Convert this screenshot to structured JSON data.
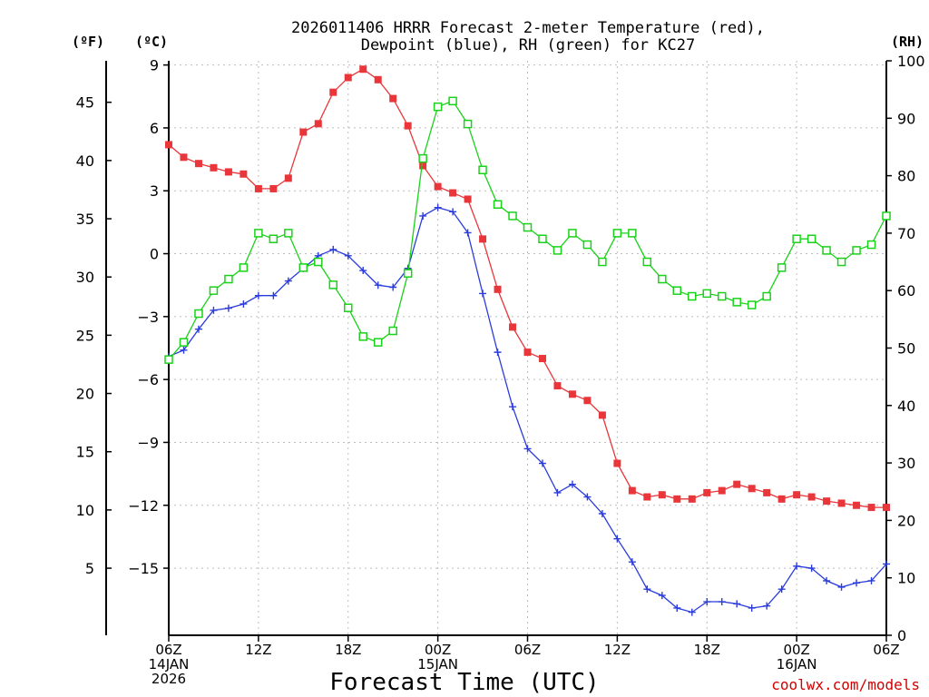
{
  "chart_data": {
    "type": "line",
    "title": [
      "2026011406 HRRR Forecast 2-meter Temperature (red),",
      "Dewpoint (blue), RH (green) for KC27"
    ],
    "xlabel": "Forecast Time (UTC)",
    "credit": "coolwx.com/models",
    "units": {
      "fahrenheit": "(ºF)",
      "celsius": "(ºC)",
      "rh": "(RH)"
    },
    "x_hours": [
      0,
      1,
      2,
      3,
      4,
      5,
      6,
      7,
      8,
      9,
      10,
      11,
      12,
      13,
      14,
      15,
      16,
      17,
      18,
      19,
      20,
      21,
      22,
      23,
      24,
      25,
      26,
      27,
      28,
      29,
      30,
      31,
      32,
      33,
      34,
      35,
      36,
      37,
      38,
      39,
      40,
      41,
      42,
      43,
      44,
      45,
      46,
      47,
      48
    ],
    "x_range": [
      0,
      48
    ],
    "x_ticks": [
      {
        "hour": 0,
        "lines": [
          "06Z",
          "14JAN",
          "2026"
        ]
      },
      {
        "hour": 6,
        "lines": [
          "12Z"
        ]
      },
      {
        "hour": 12,
        "lines": [
          "18Z"
        ]
      },
      {
        "hour": 18,
        "lines": [
          "00Z",
          "15JAN"
        ]
      },
      {
        "hour": 24,
        "lines": [
          "06Z"
        ]
      },
      {
        "hour": 30,
        "lines": [
          "12Z"
        ]
      },
      {
        "hour": 36,
        "lines": [
          "18Z"
        ]
      },
      {
        "hour": 42,
        "lines": [
          "00Z",
          "16JAN"
        ]
      },
      {
        "hour": 48,
        "lines": [
          "06Z"
        ]
      }
    ],
    "y_celsius": {
      "range": [
        -18.2,
        9.2
      ],
      "ticks": [
        9,
        6,
        3,
        0,
        -3,
        -6,
        -9,
        -12,
        -15
      ],
      "labels": [
        "9",
        "6",
        "3",
        "0",
        "−3",
        "−6",
        "−9",
        "−12",
        "−15"
      ]
    },
    "y_fahrenheit": {
      "ticks": [
        45,
        40,
        35,
        30,
        25,
        20,
        15,
        10,
        5
      ],
      "labels": [
        "45",
        "40",
        "35",
        "30",
        "25",
        "20",
        "15",
        "10",
        "5"
      ]
    },
    "y_rh": {
      "range": [
        0,
        100
      ],
      "ticks": [
        100,
        90,
        80,
        70,
        60,
        50,
        40,
        30,
        20,
        10,
        0
      ],
      "labels": [
        "100",
        "90",
        "80",
        "70",
        "60",
        "50",
        "40",
        "30",
        "20",
        "10",
        "0"
      ]
    },
    "grid": true,
    "series": [
      {
        "name": "Temperature",
        "axis": "celsius",
        "color": "#e8363a",
        "marker": "filled-square",
        "values": [
          5.2,
          4.6,
          4.3,
          4.1,
          3.9,
          3.8,
          3.1,
          3.1,
          3.6,
          5.8,
          6.2,
          7.7,
          8.4,
          8.8,
          8.3,
          7.4,
          6.1,
          4.2,
          3.2,
          2.9,
          2.6,
          0.7,
          -1.7,
          -3.5,
          -4.7,
          -5.0,
          -6.3,
          -6.7,
          -7.0,
          -7.7,
          -10.0,
          -11.3,
          -11.6,
          -11.5,
          -11.7,
          -11.7,
          -11.4,
          -11.3,
          -11.0,
          -11.2,
          -11.4,
          -11.7,
          -11.5,
          -11.6,
          -11.8,
          -11.9,
          -12.0,
          -12.1,
          -12.1
        ]
      },
      {
        "name": "Dewpoint",
        "axis": "celsius",
        "color": "#2a3cdc",
        "marker": "plus",
        "values": [
          -4.9,
          -4.6,
          -3.6,
          -2.7,
          -2.6,
          -2.4,
          -2.0,
          -2.0,
          -1.3,
          -0.7,
          -0.1,
          0.2,
          -0.1,
          -0.8,
          -1.5,
          -1.6,
          -0.7,
          1.8,
          2.2,
          2.0,
          1.0,
          -1.9,
          -4.7,
          -7.3,
          -9.3,
          -10.0,
          -11.4,
          -11.0,
          -11.6,
          -12.4,
          -13.6,
          -14.7,
          -16.0,
          -16.3,
          -16.9,
          -17.1,
          -16.6,
          -16.6,
          -16.7,
          -16.9,
          -16.8,
          -16.0,
          -14.9,
          -15.0,
          -15.6,
          -15.9,
          -15.7,
          -15.6,
          -14.8
        ]
      },
      {
        "name": "RH",
        "axis": "rh",
        "color": "#1ad21a",
        "marker": "open-square",
        "values": [
          48,
          51,
          56,
          60,
          62,
          64,
          70,
          69,
          70,
          64,
          65,
          61,
          57,
          52,
          51,
          53,
          63,
          83,
          92,
          93,
          89,
          81,
          75,
          73,
          71,
          69,
          67,
          70,
          68,
          65,
          70,
          70,
          65,
          62,
          60,
          59,
          59.5,
          59,
          58,
          57.5,
          59,
          64,
          69,
          69,
          67,
          65,
          67,
          68,
          73
        ]
      }
    ]
  }
}
